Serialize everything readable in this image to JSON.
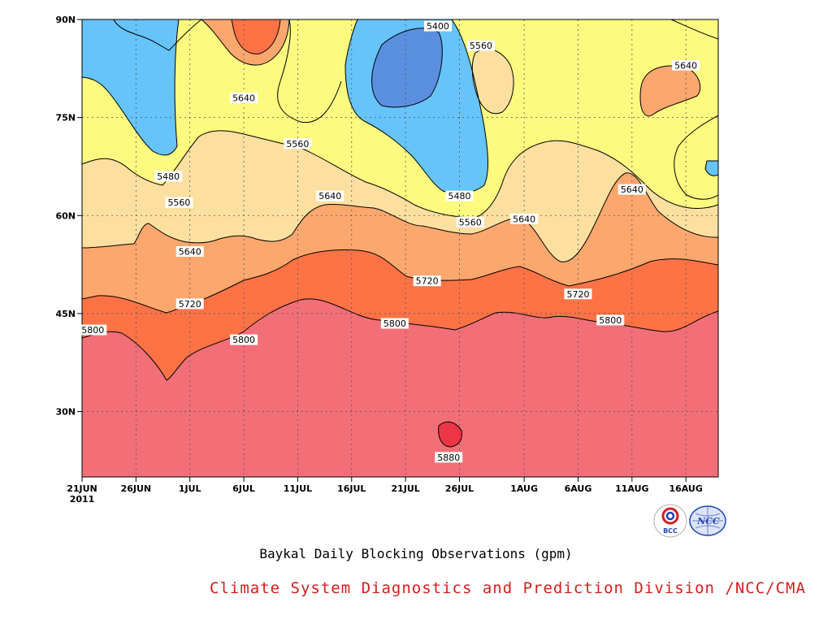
{
  "colors": {
    "c5400": "#5a8fe0",
    "c5480": "#66c4fa",
    "c5560": "#fdfa80",
    "c5640": "#fde0a0",
    "c5720": "#fca76e",
    "c5800": "#fd7346",
    "c5880": "#f36f78",
    "c5960": "#ec3645",
    "credit": "#d41e1e"
  },
  "chart_data": {
    "type": "heatmap",
    "title": "",
    "xlabel": "",
    "ylabel": "",
    "x_ticks": [
      "21JUN",
      "26JUN",
      "1JUL",
      "6JUL",
      "11JUL",
      "16JUL",
      "21JUL",
      "26JUL",
      "1AUG",
      "6AUG",
      "11AUG",
      "16AUG"
    ],
    "x_year_label": "2011",
    "y_ticks": [
      "30N",
      "45N",
      "60N",
      "75N",
      "90N"
    ],
    "xlim": [
      "21JUN",
      "19AUG"
    ],
    "ylim": [
      20,
      90
    ],
    "units": "gpm",
    "grid": true,
    "contour_levels": [
      5400,
      5480,
      5560,
      5640,
      5720,
      5800,
      5880
    ],
    "contour_labels": [
      {
        "text": "5400",
        "date": "24JUL",
        "lat": 89
      },
      {
        "text": "5560",
        "date": "28JUL",
        "lat": 86
      },
      {
        "text": "5640",
        "date": "16AUG",
        "lat": 83
      },
      {
        "text": "5640",
        "date": "6JUL",
        "lat": 78
      },
      {
        "text": "5560",
        "date": "11JUL",
        "lat": 71
      },
      {
        "text": "5480",
        "date": "29JUN",
        "lat": 66
      },
      {
        "text": "5640",
        "date": "11AUG",
        "lat": 64
      },
      {
        "text": "5560",
        "date": "30JUN",
        "lat": 62
      },
      {
        "text": "5640",
        "date": "14JUL",
        "lat": 63
      },
      {
        "text": "5480",
        "date": "26JUL",
        "lat": 63
      },
      {
        "text": "5560",
        "date": "27JUL",
        "lat": 59
      },
      {
        "text": "5640",
        "date": "1AUG",
        "lat": 59.5
      },
      {
        "text": "5640",
        "date": "1JUL",
        "lat": 54.5
      },
      {
        "text": "5720",
        "date": "23JUL",
        "lat": 50
      },
      {
        "text": "5720",
        "date": "1JUL",
        "lat": 46.5
      },
      {
        "text": "5720",
        "date": "6AUG",
        "lat": 48
      },
      {
        "text": "5800",
        "date": "22JUN",
        "lat": 42.5
      },
      {
        "text": "5800",
        "date": "20JUL",
        "lat": 43.5
      },
      {
        "text": "5800",
        "date": "9AUG",
        "lat": 44
      },
      {
        "text": "5800",
        "date": "6JUL",
        "lat": 41
      },
      {
        "text": "5880",
        "date": "25JUL",
        "lat": 23
      }
    ]
  },
  "caption": "Baykal Daily Blocking Observations (gpm)",
  "credit": "Climate System Diagnostics and Prediction Division /NCC/CMA",
  "logos": {
    "bcc": "BCC",
    "ncc": "NCC"
  }
}
